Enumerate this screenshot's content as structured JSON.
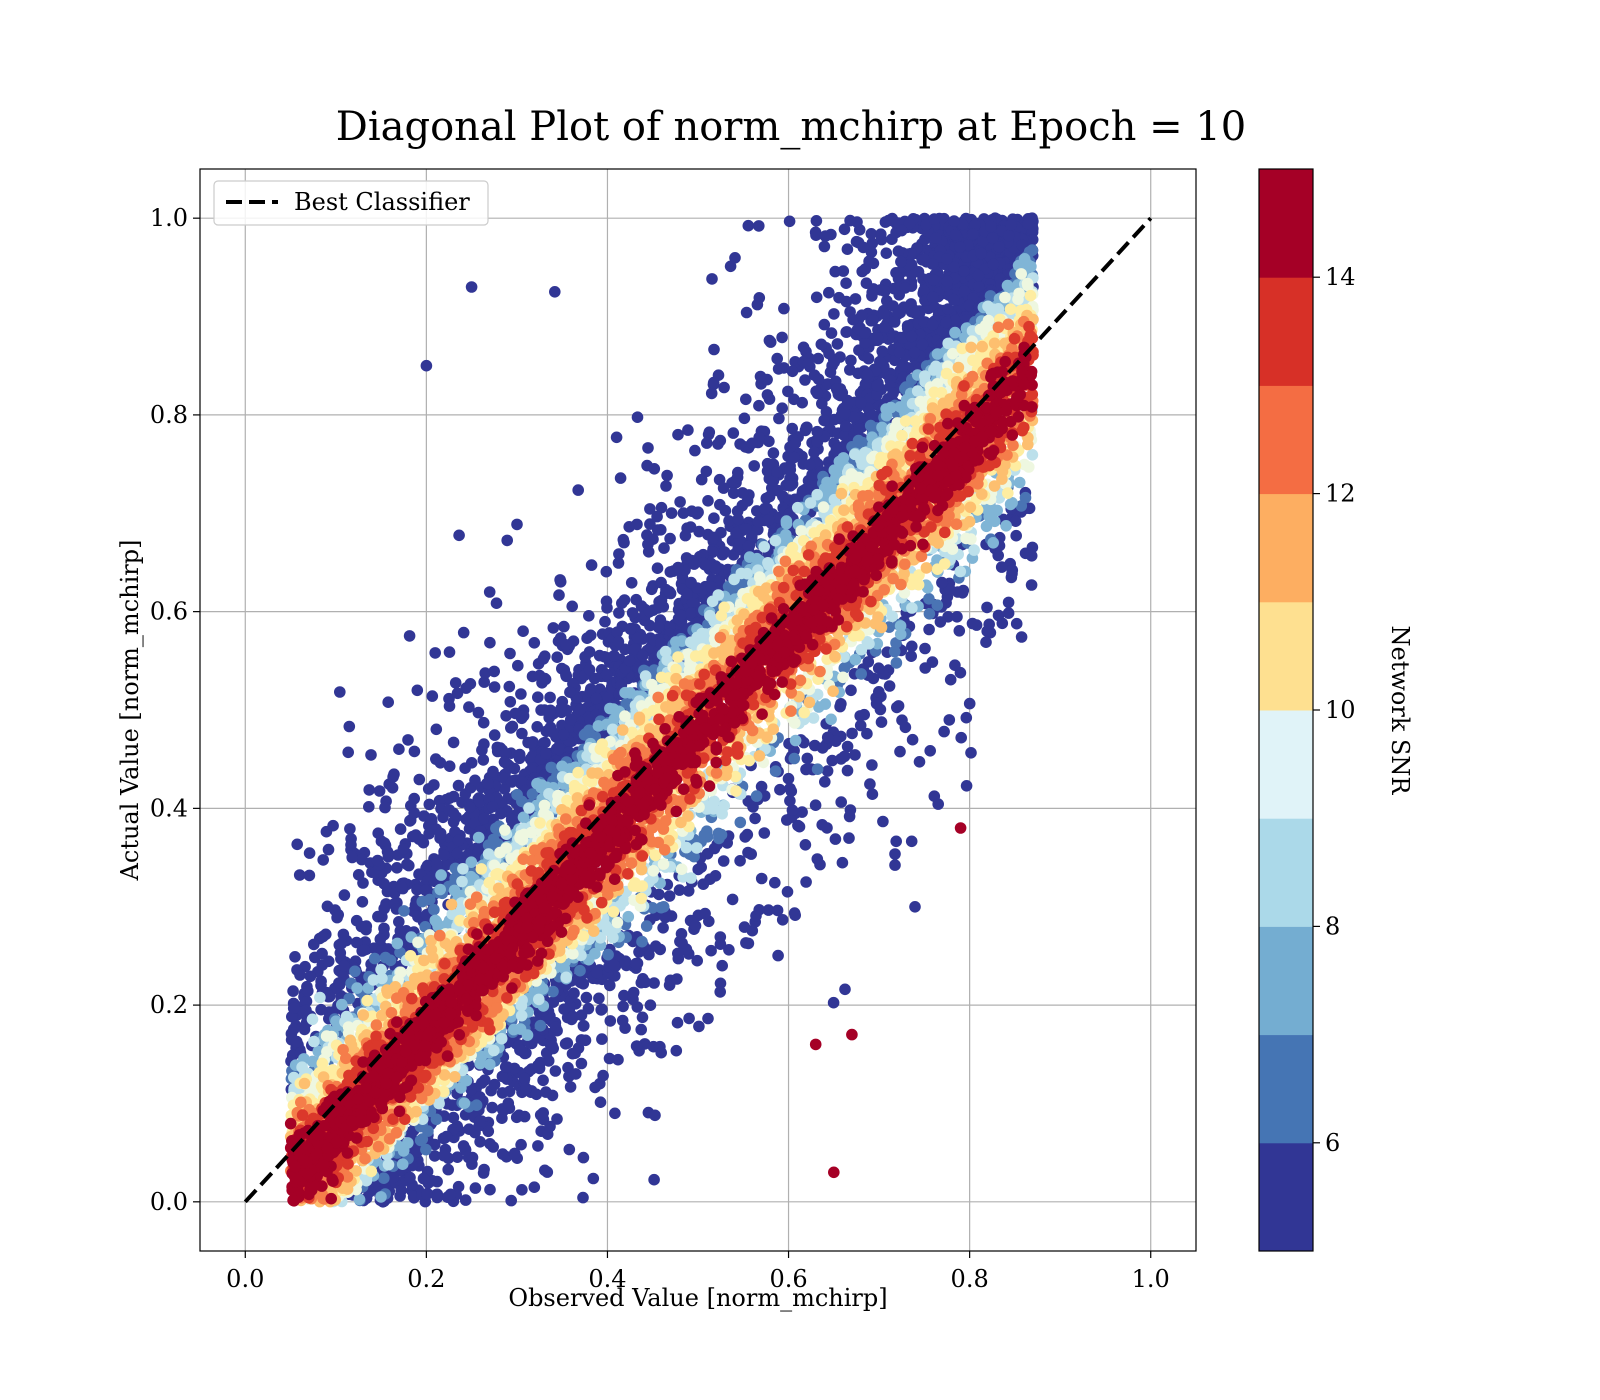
{
  "chart_data": {
    "type": "scatter",
    "title": "Diagonal Plot of norm_mchirp at Epoch = 10",
    "xlabel": "Observed Value [norm_mchirp]",
    "ylabel": "Actual Value [norm_mchirp]",
    "xlim": [
      -0.05,
      1.05
    ],
    "ylim": [
      -0.05,
      1.05
    ],
    "xticks": [
      "0.0",
      "0.2",
      "0.4",
      "0.6",
      "0.8",
      "1.0"
    ],
    "yticks": [
      "0.0",
      "0.2",
      "0.4",
      "0.6",
      "0.8",
      "1.0"
    ],
    "grid": true,
    "legend": {
      "position": "upper-left",
      "entries": [
        "Best Classifier"
      ]
    },
    "reference_line": {
      "name": "Best Classifier",
      "x": [
        0.0,
        1.0
      ],
      "y": [
        0.0,
        1.0
      ],
      "style": "dashed",
      "color": "#000000"
    },
    "colorbar": {
      "label": "Network SNR",
      "range": [
        5,
        15
      ],
      "ticks": [
        "6",
        "8",
        "10",
        "12",
        "14"
      ],
      "colors": [
        "#313695",
        "#4575b4",
        "#74add1",
        "#abd9e9",
        "#e0f3f8",
        "#fee090",
        "#fdae61",
        "#f46d43",
        "#d73027",
        "#a50026"
      ]
    },
    "point_color_map": [
      "#313695",
      "#4a74b4",
      "#80b5d6",
      "#bce0eb",
      "#eef7e0",
      "#feeda1",
      "#fdbf6f",
      "#f57d4a",
      "#db382b",
      "#a50026"
    ],
    "scatter_model": {
      "n_points": 15000,
      "x_range": [
        0.05,
        0.87
      ],
      "y_range": [
        0.0,
        1.0
      ],
      "note_outliers": [
        {
          "x": 0.19,
          "y": 0.52
        },
        {
          "x": 0.2,
          "y": 0.85
        },
        {
          "x": 0.25,
          "y": 0.93
        },
        {
          "x": 0.79,
          "y": 0.38
        },
        {
          "x": 0.65,
          "y": 0.03
        },
        {
          "x": 0.63,
          "y": 0.16
        },
        {
          "x": 0.67,
          "y": 0.17
        },
        {
          "x": 0.27,
          "y": 0.62
        },
        {
          "x": 0.87,
          "y": 0.93
        }
      ]
    }
  }
}
